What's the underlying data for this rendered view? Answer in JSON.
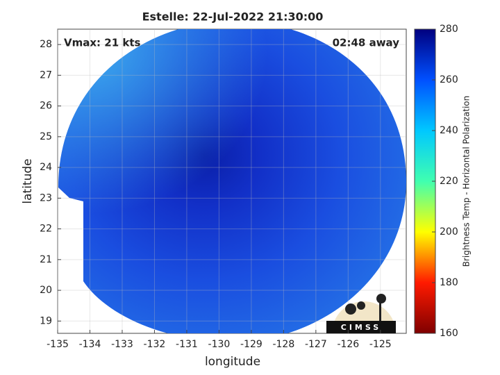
{
  "chart_data": {
    "type": "heatmap",
    "title": "Estelle: 22-Jul-2022 21:30:00",
    "annotations": [
      "Vmax: 21 kts",
      "02:48 away"
    ],
    "xlabel": "longitude",
    "ylabel": "latitude",
    "xlim": [
      -135.0,
      -124.2
    ],
    "ylim": [
      18.6,
      28.5
    ],
    "xticks": [
      -135,
      -134,
      -133,
      -132,
      -131,
      -130,
      -129,
      -128,
      -127,
      -126,
      -125
    ],
    "yticks": [
      19,
      20,
      21,
      22,
      23,
      24,
      25,
      26,
      27,
      28
    ],
    "grid": true,
    "colorbar": {
      "label": "Brightness Temp - Horizontal Polarization",
      "lim": [
        160,
        280
      ],
      "ticks": [
        160,
        180,
        200,
        220,
        240,
        260,
        280
      ],
      "colormap": [
        "#7f0000",
        "#ff1a00",
        "#ffff00",
        "#40ffb0",
        "#00c8ff",
        "#0050ff",
        "#00007f"
      ]
    },
    "logo": "CIMSS"
  }
}
